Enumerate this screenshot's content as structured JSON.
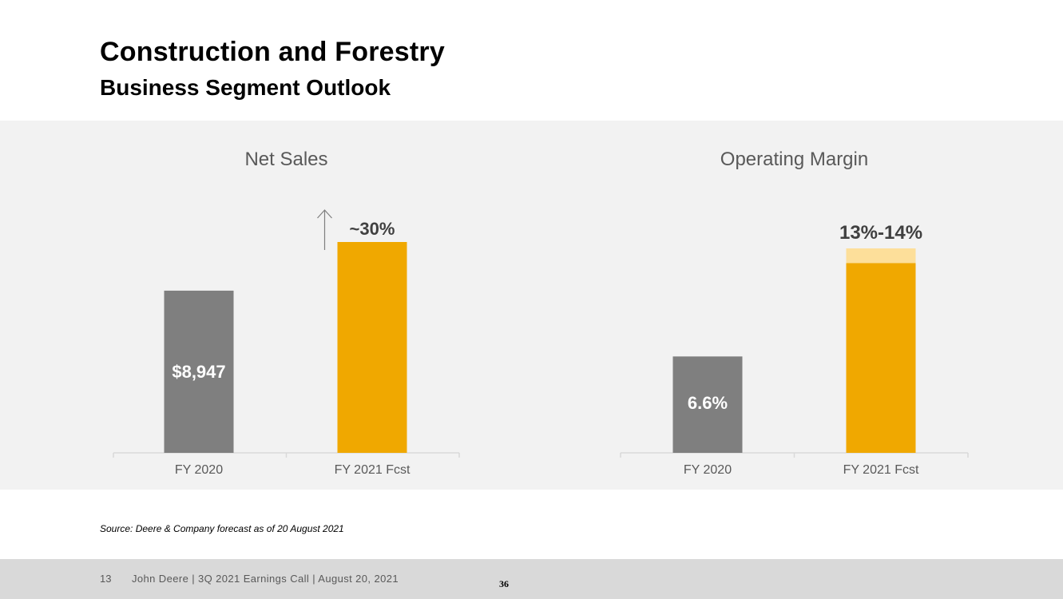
{
  "header": {
    "title": "Construction and Forestry",
    "subtitle": "Business Segment Outlook"
  },
  "colors": {
    "fy2020": "#7f7f7f",
    "forecast": "#f0a800",
    "forecast_range": "#fddf9a",
    "panel_bg": "#f2f2f2"
  },
  "chart_data": [
    {
      "type": "bar",
      "title": "Net Sales",
      "categories": [
        "FY 2020",
        "FY 2021 Fcst"
      ],
      "values": [
        8947,
        11631
      ],
      "ylim": [
        0,
        11631
      ],
      "data_labels": [
        "$8,947",
        ""
      ],
      "annotation": {
        "text": "~30%",
        "arrow": "up",
        "category": "FY 2021 Fcst"
      },
      "grid": false,
      "legend": "none"
    },
    {
      "type": "bar",
      "title": "Operating Margin",
      "categories": [
        "FY 2020",
        "FY 2021 Fcst"
      ],
      "values": [
        6.6,
        13
      ],
      "range_top": [
        null,
        14
      ],
      "ylim": [
        0,
        14
      ],
      "data_labels": [
        "6.6%",
        "13%-14%"
      ],
      "grid": false,
      "legend": "none"
    }
  ],
  "footnote": {
    "source": "Source: Deere & Company forecast as of 20 August 2021"
  },
  "footer": {
    "page_number": "13",
    "text": "John Deere | 3Q 2021 Earnings Call | August 20, 2021",
    "slide_number": "36"
  }
}
